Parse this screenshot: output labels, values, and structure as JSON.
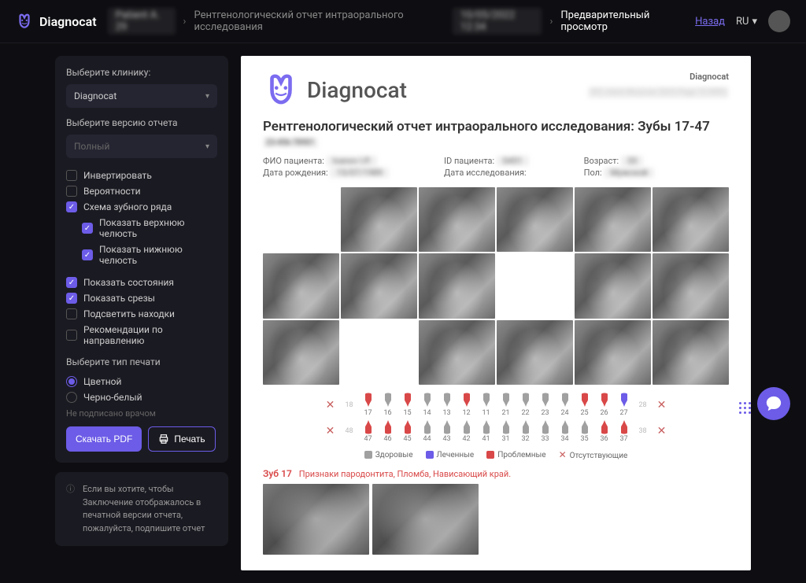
{
  "header": {
    "logo_text": "Diagnocat",
    "crumb_blur1": "Patient A. 29",
    "crumb_main": "Рентгенологический отчет интраорального исследования",
    "crumb_blur2": "10/05/2022 12:34",
    "crumb_preview": "Предварительный просмотр",
    "back": "Назад",
    "lang": "RU"
  },
  "sidebar": {
    "clinic_label": "Выберите клинику:",
    "clinic_value": "Diagnocat",
    "version_label": "Выберите версию отчета",
    "version_value": "Полный",
    "opts": {
      "invert": "Инвертировать",
      "prob": "Вероятности",
      "scheme": "Схема зубного ряда",
      "upper": "Показать верхнюю челюсть",
      "lower": "Показать нижнюю челюсть",
      "states": "Показать состояния",
      "slices": "Показать срезы",
      "highlight": "Подсветить находки",
      "recs": "Рекомендации по направлению"
    },
    "print_type_label": "Выберите тип печати",
    "print_color": "Цветной",
    "print_bw": "Черно-белый",
    "unsigned": "Не подписано врачом",
    "download": "Скачать PDF",
    "print": "Печать",
    "info": "Если вы хотите, чтобы Заключение отображалось в печатной версии отчета, пожалуйста, подпишите отчет"
  },
  "report": {
    "brand_small": "Diagnocat",
    "logo_text": "Diagnocat",
    "header_blur": "IDC client Moscow 2023 Page 15 WRG",
    "title": "Рентгенологический отчет интраорального исследования: Зубы 17-47",
    "sub_blur": "23-456-78901",
    "patient": {
      "fio_label": "ФИО пациента:",
      "fio_val": "Ivanov I.P.",
      "dob_label": "Дата рождения:",
      "dob_val": "15/07/1989",
      "id_label": "ID пациента:",
      "id_val": "0451",
      "date_label": "Дата исследования:",
      "age_label": "Возраст:",
      "age_val": "33",
      "sex_label": "Пол:",
      "sex_val": "Мужской"
    },
    "chart": {
      "upper_row_left_edge": "18",
      "upper_row_right_edge": "28",
      "lower_row_left_edge": "48",
      "lower_row_right_edge": "38",
      "upper_teeth": [
        {
          "num": "17",
          "color": "#d94848"
        },
        {
          "num": "16",
          "color": "#a0a0a0"
        },
        {
          "num": "15",
          "color": "#d94848"
        },
        {
          "num": "14",
          "color": "#a0a0a0"
        },
        {
          "num": "13",
          "color": "#a0a0a0"
        },
        {
          "num": "12",
          "color": "#d94848"
        },
        {
          "num": "11",
          "color": "#a0a0a0"
        },
        {
          "num": "21",
          "color": "#a0a0a0"
        },
        {
          "num": "22",
          "color": "#a0a0a0"
        },
        {
          "num": "23",
          "color": "#a0a0a0"
        },
        {
          "num": "24",
          "color": "#a0a0a0"
        },
        {
          "num": "25",
          "color": "#d94848"
        },
        {
          "num": "26",
          "color": "#d94848"
        },
        {
          "num": "27",
          "color": "#6c5ce7"
        }
      ],
      "lower_teeth": [
        {
          "num": "47",
          "color": "#d94848"
        },
        {
          "num": "46",
          "color": "#d94848"
        },
        {
          "num": "45",
          "color": "#d94848"
        },
        {
          "num": "44",
          "color": "#a0a0a0"
        },
        {
          "num": "43",
          "color": "#a0a0a0"
        },
        {
          "num": "42",
          "color": "#a0a0a0"
        },
        {
          "num": "41",
          "color": "#a0a0a0"
        },
        {
          "num": "31",
          "color": "#a0a0a0"
        },
        {
          "num": "32",
          "color": "#a0a0a0"
        },
        {
          "num": "33",
          "color": "#a0a0a0"
        },
        {
          "num": "34",
          "color": "#a0a0a0"
        },
        {
          "num": "35",
          "color": "#a0a0a0"
        },
        {
          "num": "36",
          "color": "#d94848"
        },
        {
          "num": "37",
          "color": "#d94848"
        }
      ]
    },
    "legend": {
      "healthy": "Здоровые",
      "healthy_color": "#a0a0a0",
      "treated": "Леченные",
      "treated_color": "#6c5ce7",
      "problem": "Проблемные",
      "problem_color": "#d94848",
      "missing": "Отсутствующие"
    },
    "detail": {
      "title": "Зуб 17",
      "findings": "Признаки пародонтита, Пломба, Нависающий край."
    }
  }
}
